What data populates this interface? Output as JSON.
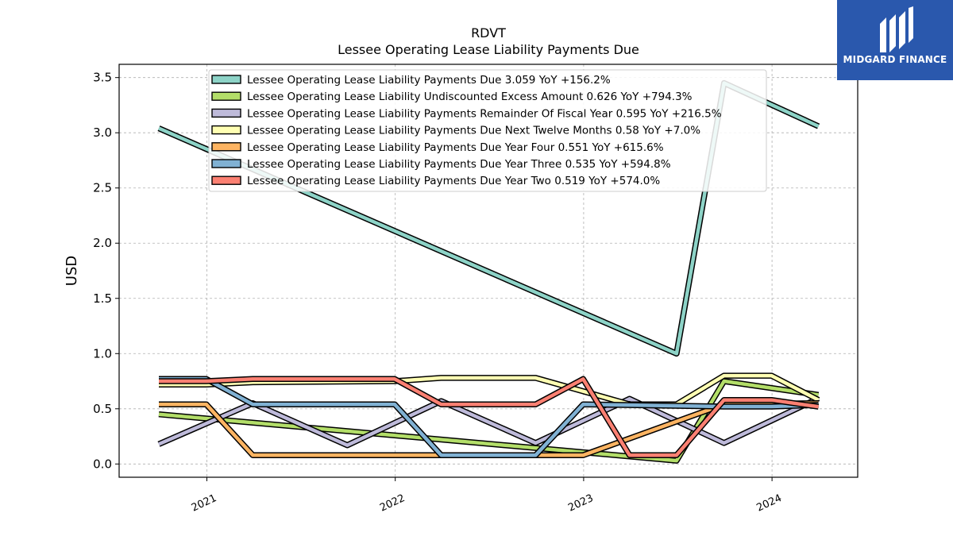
{
  "chart_data": {
    "type": "line",
    "title": "RDVT",
    "subtitle": "Lessee Operating Lease Liability Payments Due",
    "xlabel": "",
    "ylabel": "USD",
    "xlim": [
      "2020-07-15",
      "2024-06-15"
    ],
    "ylim": [
      -0.12,
      3.62
    ],
    "yticks": [
      0.0,
      0.5,
      1.0,
      1.5,
      2.0,
      2.5,
      3.0,
      3.5
    ],
    "ytick_labels": [
      "0.0",
      "0.5",
      "1.0",
      "1.5",
      "2.0",
      "2.5",
      "3.0",
      "3.5"
    ],
    "xticks": [
      "2021-01-01",
      "2022-01-01",
      "2023-01-01",
      "2024-01-01"
    ],
    "xtick_labels": [
      "2021",
      "2022",
      "2023",
      "2024"
    ],
    "grid": true,
    "legend_position": "top",
    "series": [
      {
        "name": "Lessee Operating Lease Liability Payments Due  3.059 YoY +156.2%",
        "color": "#8dd3c7",
        "points": [
          [
            "2020-09-30",
            3.04
          ],
          [
            "2023-06-30",
            1.0
          ],
          [
            "2023-09-30",
            3.45
          ],
          [
            "2024-03-31",
            3.059
          ]
        ]
      },
      {
        "name": "Lessee Operating Lease Liability Undiscounted Excess Amount  0.626 YoY +794.3%",
        "color": "#b3de69",
        "points": [
          [
            "2020-09-30",
            0.45
          ],
          [
            "2023-06-30",
            0.03
          ],
          [
            "2023-09-30",
            0.75
          ],
          [
            "2024-03-31",
            0.626
          ]
        ]
      },
      {
        "name": "Lessee Operating Lease Liability Payments Remainder Of Fiscal Year  0.595 YoY +216.5%",
        "color": "#bebada",
        "points": [
          [
            "2020-09-30",
            0.18
          ],
          [
            "2021-03-31",
            0.55
          ],
          [
            "2021-09-30",
            0.17
          ],
          [
            "2022-03-31",
            0.57
          ],
          [
            "2022-09-30",
            0.19
          ],
          [
            "2023-03-31",
            0.59
          ],
          [
            "2023-09-30",
            0.19
          ],
          [
            "2024-03-31",
            0.595
          ]
        ]
      },
      {
        "name": "Lessee Operating Lease Liability Payments Due Next Twelve Months  0.58 YoY +7.0%",
        "color": "#ffffb3",
        "points": [
          [
            "2020-09-30",
            0.72
          ],
          [
            "2020-12-31",
            0.72
          ],
          [
            "2021-03-31",
            0.74
          ],
          [
            "2021-12-31",
            0.75
          ],
          [
            "2022-03-31",
            0.78
          ],
          [
            "2022-09-30",
            0.78
          ],
          [
            "2023-03-31",
            0.54
          ],
          [
            "2023-06-30",
            0.54
          ],
          [
            "2023-09-30",
            0.8
          ],
          [
            "2023-12-31",
            0.8
          ],
          [
            "2024-03-31",
            0.58
          ]
        ]
      },
      {
        "name": "Lessee Operating Lease Liability Payments Due Year Four  0.551 YoY +615.6%",
        "color": "#fdb462",
        "points": [
          [
            "2020-09-30",
            0.54
          ],
          [
            "2020-12-31",
            0.54
          ],
          [
            "2021-03-31",
            0.08
          ],
          [
            "2022-12-31",
            0.08
          ],
          [
            "2023-09-30",
            0.54
          ],
          [
            "2024-03-31",
            0.551
          ]
        ]
      },
      {
        "name": "Lessee Operating Lease Liability Payments Due Year Three  0.535 YoY +594.8%",
        "color": "#80b1d3",
        "points": [
          [
            "2020-09-30",
            0.77
          ],
          [
            "2020-12-31",
            0.77
          ],
          [
            "2021-03-31",
            0.54
          ],
          [
            "2021-12-31",
            0.54
          ],
          [
            "2022-03-31",
            0.08
          ],
          [
            "2022-09-30",
            0.08
          ],
          [
            "2022-12-31",
            0.54
          ],
          [
            "2023-09-30",
            0.52
          ],
          [
            "2023-12-31",
            0.52
          ],
          [
            "2024-03-31",
            0.535
          ]
        ]
      },
      {
        "name": "Lessee Operating Lease Liability Payments Due Year Two  0.519 YoY +574.0%",
        "color": "#fb8072",
        "points": [
          [
            "2020-09-30",
            0.75
          ],
          [
            "2020-12-31",
            0.75
          ],
          [
            "2021-03-31",
            0.77
          ],
          [
            "2021-12-31",
            0.77
          ],
          [
            "2022-03-31",
            0.54
          ],
          [
            "2022-09-30",
            0.54
          ],
          [
            "2022-12-31",
            0.77
          ],
          [
            "2023-03-31",
            0.08
          ],
          [
            "2023-06-30",
            0.08
          ],
          [
            "2023-09-30",
            0.58
          ],
          [
            "2023-12-31",
            0.58
          ],
          [
            "2024-03-31",
            0.519
          ]
        ]
      }
    ]
  },
  "logo": {
    "text": "MIDGARD FINANCE",
    "background": "#2a58ad"
  }
}
